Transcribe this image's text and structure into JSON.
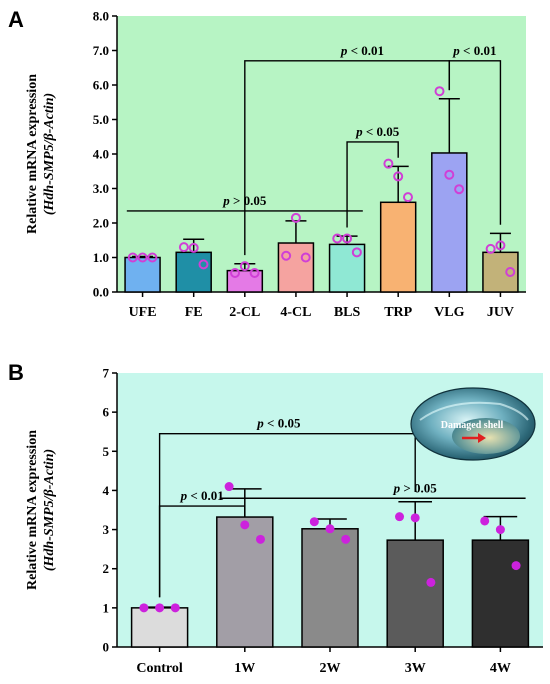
{
  "chart_data": [
    {
      "panel": "A",
      "type": "bar",
      "categories": [
        "UFE",
        "FE",
        "2-CL",
        "4-CL",
        "BLS",
        "TRP",
        "VLG",
        "JUV"
      ],
      "values": [
        1.0,
        1.15,
        0.62,
        1.42,
        1.38,
        2.6,
        4.03,
        1.15
      ],
      "errors": [
        0.03,
        0.38,
        0.2,
        0.64,
        0.24,
        1.04,
        1.57,
        0.55
      ],
      "points": [
        [
          1.0,
          1.0,
          1.0
        ],
        [
          1.3,
          1.28,
          0.8
        ],
        [
          0.55,
          0.75,
          0.55
        ],
        [
          1.05,
          2.15,
          1.0
        ],
        [
          1.55,
          1.55,
          1.15
        ],
        [
          3.72,
          3.35,
          2.75
        ],
        [
          5.82,
          3.4,
          2.98
        ],
        [
          1.25,
          1.35,
          0.58
        ]
      ],
      "bar_colors": [
        "#6fb1f0",
        "#1f8fa6",
        "#e47ae6",
        "#f5a3a0",
        "#8fe8d4",
        "#f8b272",
        "#9ca3f2",
        "#c2b279"
      ],
      "point_style": "hollow",
      "background": "#b7f4c4",
      "ylabel": "Relative mRNA expression",
      "ylabel_sub": "(Hdh-SMP5/β-Actin)",
      "ylim": [
        0,
        8
      ],
      "yticks": [
        "0.0",
        "1.0",
        "2.0",
        "3.0",
        "4.0",
        "5.0",
        "6.0",
        "7.0",
        "8.0"
      ],
      "annotations": [
        {
          "text": "p < 0.01",
          "from": 2,
          "to": 6,
          "y": 6.7,
          "label_x": 4.3
        },
        {
          "text": "p < 0.01",
          "from": 6,
          "to": 7,
          "y": 6.7,
          "label_x": 6.5
        },
        {
          "text": "p < 0.05",
          "from": 4,
          "to": 5,
          "y": 4.35,
          "label_x": 4.6
        },
        {
          "text": "p > 0.05",
          "from": 0,
          "to": 4,
          "y": 2.35,
          "label_x": 2.0,
          "line_only": true
        }
      ]
    },
    {
      "panel": "B",
      "type": "bar",
      "categories": [
        "Control",
        "1W",
        "2W",
        "3W",
        "4W"
      ],
      "values": [
        1.0,
        3.32,
        3.02,
        2.73,
        2.73
      ],
      "errors": [
        0.02,
        0.72,
        0.25,
        0.98,
        0.6
      ],
      "points": [
        [
          1.0,
          1.0,
          1.0
        ],
        [
          4.1,
          3.12,
          2.75
        ],
        [
          3.2,
          3.02,
          2.75
        ],
        [
          3.33,
          3.3,
          1.65
        ],
        [
          3.22,
          3.0,
          2.08
        ]
      ],
      "bar_colors": [
        "#dcdcdc",
        "#a29ea6",
        "#8a8a8a",
        "#5b5b5b",
        "#2f2f2f"
      ],
      "point_style": "filled",
      "background": "#c6f7ec",
      "ylabel": "Relative mRNA expression",
      "ylabel_sub": "(Hdh-SMP5/β-Actin)",
      "ylim": [
        0,
        7
      ],
      "yticks": [
        "0",
        "1",
        "2",
        "3",
        "4",
        "5",
        "6",
        "7"
      ],
      "annotations": [
        {
          "text": "p < 0.05",
          "from": 0,
          "to": 3,
          "y": 5.45,
          "label_x": 1.4
        },
        {
          "text": "p < 0.01",
          "from": 0,
          "to": 1,
          "y": 3.6,
          "label_x": 0.5
        },
        {
          "text": "p > 0.05",
          "from": 1,
          "to": 4,
          "y": 3.8,
          "label_x": 3.0,
          "line_only": true
        }
      ],
      "inset_label": "Damaged shell"
    }
  ]
}
